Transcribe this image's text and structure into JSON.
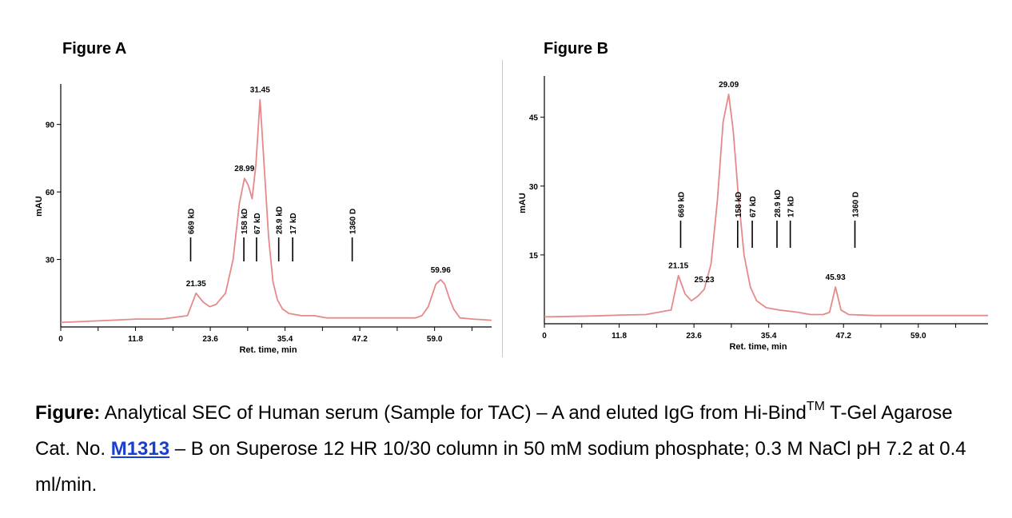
{
  "caption": {
    "lead": "Figure:",
    "part1": " Analytical SEC of Human serum (Sample for TAC) – A and eluted IgG from Hi-Bind",
    "sup": "TM",
    "part2": " T-Gel Agarose Cat. No. ",
    "link": "M1313",
    "part3": " – B on Superose 12 HR 10/30 column in 50 mM sodium phosphate; 0.3 M NaCl pH 7.2 at 0.4 ml/min."
  },
  "chart_data": [
    {
      "type": "line",
      "title": "Figure A",
      "xlabel": "Ret. time, min",
      "ylabel": "mAU",
      "xlim": [
        0,
        68
      ],
      "ylim": [
        0,
        108
      ],
      "xticks": [
        "0",
        "11.8",
        "23.6",
        "35.4",
        "47.2",
        "59.0"
      ],
      "yticks": [
        "30",
        "60",
        "90"
      ],
      "line_color": "#e58a8a",
      "series": [
        {
          "x": [
            0,
            4,
            8,
            12,
            16,
            20,
            21.35,
            22.5,
            23.5,
            24.5,
            26,
            27.2,
            28.2,
            28.99,
            29.6,
            30.2,
            30.8,
            31.45,
            32.1,
            32.8,
            33.5,
            34.2,
            35,
            36,
            38,
            40,
            42,
            44,
            46,
            48,
            50,
            52,
            54,
            56,
            57,
            58,
            58.6,
            59.2,
            59.96,
            60.6,
            61.3,
            62,
            63,
            65,
            68
          ],
          "y": [
            2,
            2.5,
            3,
            3.5,
            3.5,
            5,
            15,
            11,
            9,
            10,
            15,
            30,
            55,
            66,
            63,
            57,
            72,
            101,
            72,
            40,
            20,
            12,
            8,
            6,
            5,
            5,
            4,
            4,
            4,
            4,
            4,
            4,
            4,
            4,
            5,
            9,
            14,
            19,
            21,
            19,
            13,
            8,
            4,
            3.5,
            3
          ]
        }
      ],
      "peak_labels": [
        "21.35",
        "28.99",
        "31.45",
        "59.96"
      ],
      "peak_positions": [
        [
          21.35,
          15
        ],
        [
          28.99,
          66
        ],
        [
          31.45,
          101
        ],
        [
          59.96,
          21
        ]
      ],
      "markers": [
        {
          "label": "669 kD",
          "x": 20.5
        },
        {
          "label": "158 kD",
          "x": 28.9
        },
        {
          "label": "67 kD",
          "x": 30.9
        },
        {
          "label": "28.9 kD",
          "x": 34.4
        },
        {
          "label": "17 kD",
          "x": 36.6
        },
        {
          "label": "1360 D",
          "x": 46.0
        }
      ]
    },
    {
      "type": "line",
      "title": "Figure B",
      "xlabel": "Ret. time, min",
      "ylabel": "mAU",
      "xlim": [
        0,
        70
      ],
      "ylim": [
        0,
        54
      ],
      "xticks": [
        "0",
        "11.8",
        "23.6",
        "35.4",
        "47.2",
        "59.0"
      ],
      "yticks": [
        "15",
        "30",
        "45"
      ],
      "line_color": "#e58a8a",
      "series": [
        {
          "x": [
            0,
            4,
            8,
            12,
            16,
            20,
            21.15,
            22.2,
            23.2,
            24.2,
            25.23,
            26.3,
            27.3,
            28.2,
            29.09,
            29.8,
            30.6,
            31.5,
            32.5,
            33.5,
            35,
            37,
            40,
            42,
            44,
            45,
            45.93,
            46.8,
            48,
            52,
            56,
            60,
            65,
            70
          ],
          "y": [
            1.5,
            1.6,
            1.7,
            1.9,
            2,
            3,
            10.5,
            6.5,
            5,
            6,
            7.5,
            13,
            27,
            44,
            50,
            42,
            28,
            15,
            8,
            5,
            3.5,
            3,
            2.5,
            2,
            2,
            2.5,
            8,
            3,
            2,
            1.8,
            1.8,
            1.8,
            1.8,
            1.8
          ]
        }
      ],
      "peak_labels": [
        "21.15",
        "25.23",
        "29.09",
        "45.93"
      ],
      "peak_positions": [
        [
          21.15,
          10.5
        ],
        [
          25.23,
          7.5
        ],
        [
          29.09,
          50
        ],
        [
          45.93,
          8
        ]
      ],
      "markers": [
        {
          "label": "669 kD",
          "x": 21.5
        },
        {
          "label": "158 kD",
          "x": 30.5
        },
        {
          "label": "67 kD",
          "x": 32.8
        },
        {
          "label": "28.9 kD",
          "x": 36.7
        },
        {
          "label": "17 kD",
          "x": 38.8
        },
        {
          "label": "1360 D",
          "x": 49.0
        }
      ]
    }
  ]
}
